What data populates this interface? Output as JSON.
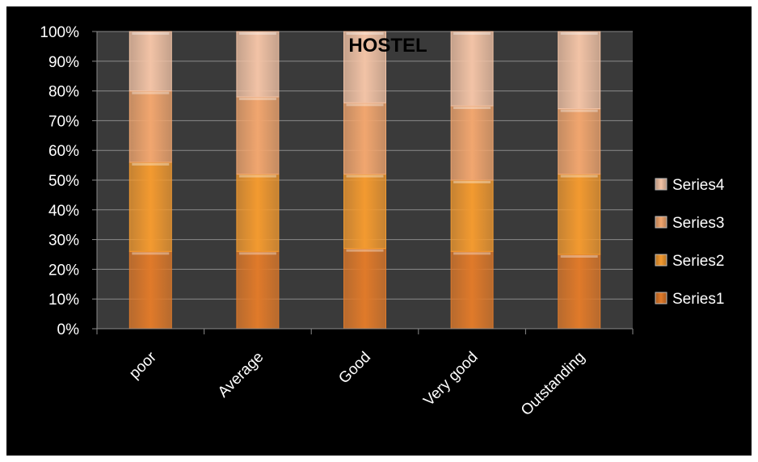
{
  "chart_data": {
    "type": "bar",
    "stacked": true,
    "percent_stacked": true,
    "title": "HOSTEL",
    "categories": [
      "poor",
      "Average",
      "Good",
      "Very good",
      "Outstanding"
    ],
    "series": [
      {
        "name": "Series1",
        "values": [
          26,
          26,
          27,
          26,
          25
        ],
        "color": "#e07a2a"
      },
      {
        "name": "Series2",
        "values": [
          30,
          26,
          25,
          24,
          27
        ],
        "color": "#f39a30"
      },
      {
        "name": "Series3",
        "values": [
          24,
          26,
          24,
          25,
          22
        ],
        "color": "#f1a66f"
      },
      {
        "name": "Series4",
        "values": [
          20,
          22,
          24,
          25,
          26
        ],
        "color": "#f2c3a6"
      }
    ],
    "y_ticks": [
      "0%",
      "10%",
      "20%",
      "30%",
      "40%",
      "50%",
      "60%",
      "70%",
      "80%",
      "90%",
      "100%"
    ],
    "ylim": [
      0,
      100
    ],
    "grid": true,
    "plot_background": "#3a3a3a",
    "legend_position": "right"
  }
}
